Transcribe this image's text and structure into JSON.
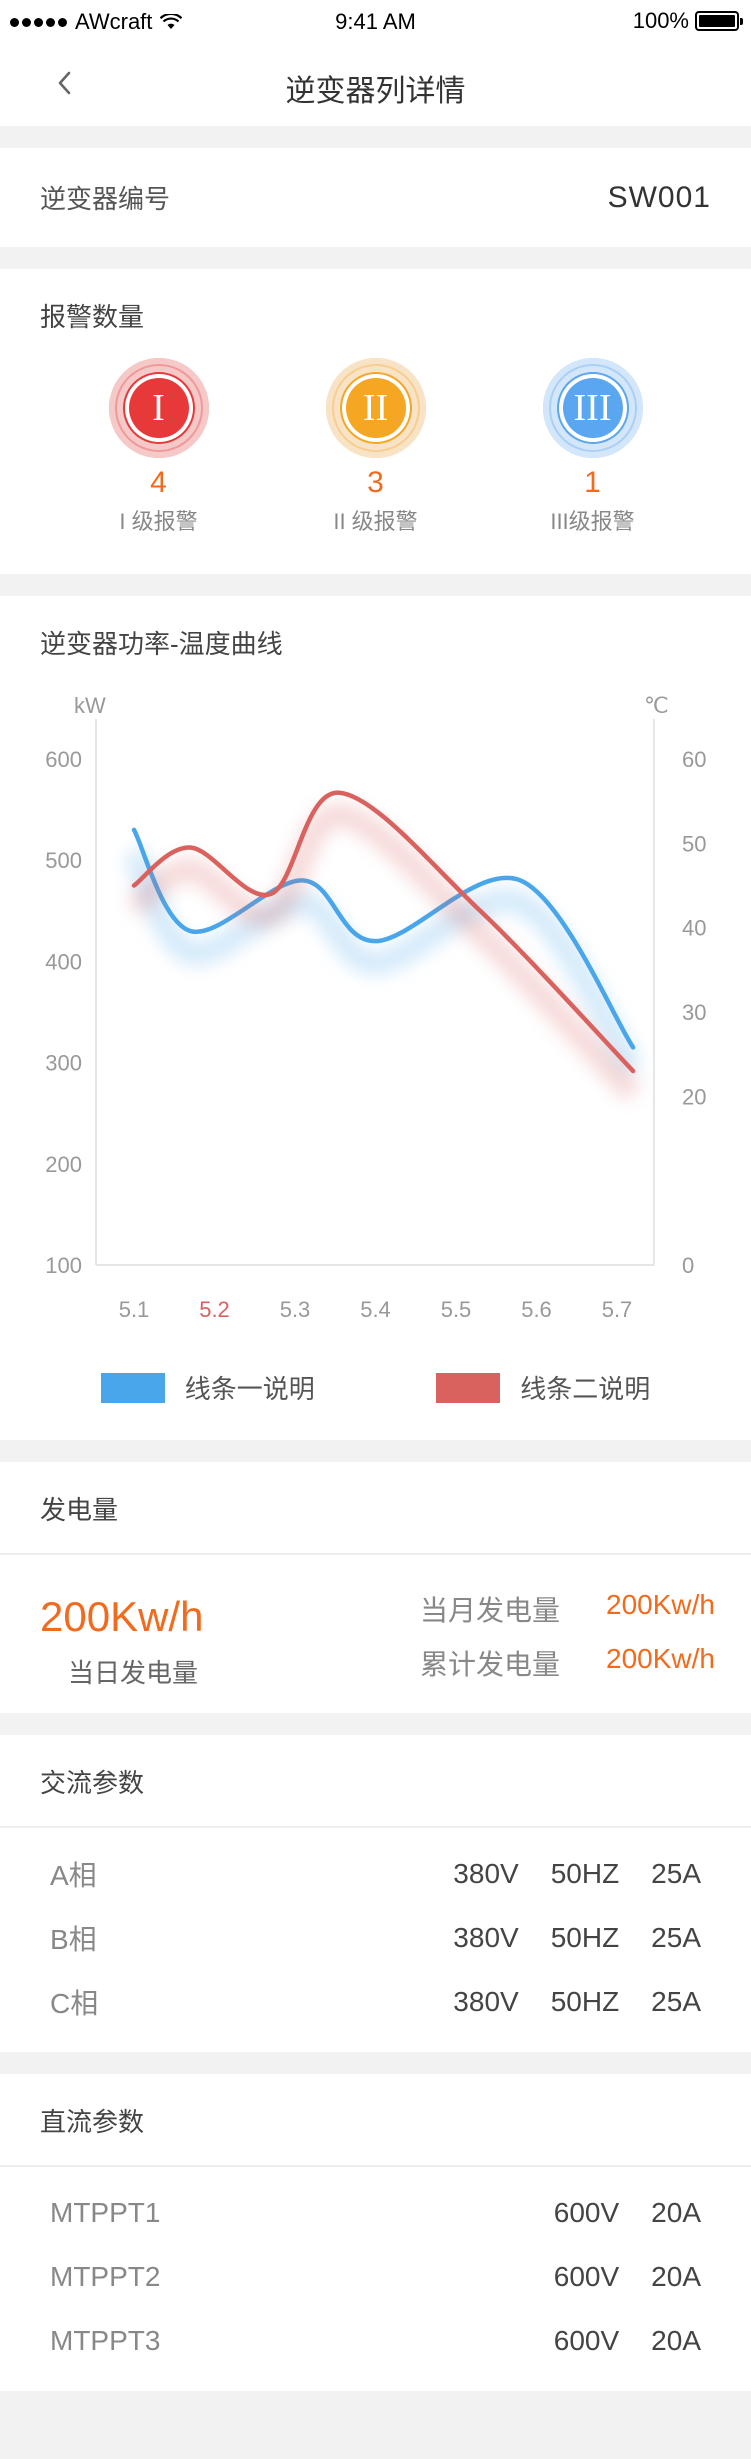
{
  "status_bar": {
    "carrier": "AWcraft",
    "time": "9:41 AM",
    "battery": "100%"
  },
  "nav": {
    "title": "逆变器列详情"
  },
  "inverter": {
    "label": "逆变器编号",
    "id": "SW001"
  },
  "alarms": {
    "title": "报警数量",
    "items": [
      {
        "numeral": "I",
        "count": "4",
        "label": "I 级报警",
        "color": "#e8393a",
        "halo": "#f6c9c9"
      },
      {
        "numeral": "II",
        "count": "3",
        "label": "II 级报警",
        "color": "#f5a623",
        "halo": "#f9e3c6"
      },
      {
        "numeral": "III",
        "count": "1",
        "label": "III级报警",
        "color": "#5aa6f0",
        "halo": "#d3e6fa"
      }
    ]
  },
  "chart": {
    "title": "逆变器功率-温度曲线",
    "legend": [
      {
        "name": "线条一说明",
        "color": "#4aa6ea"
      },
      {
        "name": "线条二说明",
        "color": "#d9625f"
      }
    ]
  },
  "chart_data": {
    "type": "line",
    "categories": [
      "5.1",
      "5.2",
      "5.3",
      "5.4",
      "5.5",
      "5.6",
      "5.7"
    ],
    "highlight_category": "5.2",
    "ylabel": "kW",
    "y2label": "℃",
    "ylim": [
      100,
      600
    ],
    "y_ticks": [
      600,
      500,
      400,
      300,
      200,
      100
    ],
    "y2lim": [
      0,
      60
    ],
    "y2_ticks": [
      60,
      50,
      40,
      30,
      20,
      0
    ],
    "series": [
      {
        "name": "线条一说明",
        "axis": "left",
        "color": "#4aa6ea",
        "points": [
          [
            0.0,
            530
          ],
          [
            0.7,
            430
          ],
          [
            2.1,
            480
          ],
          [
            3.0,
            420
          ],
          [
            4.8,
            480
          ],
          [
            6.2,
            315
          ]
        ]
      },
      {
        "name": "线条二说明",
        "axis": "right",
        "color": "#d9625f",
        "points": [
          [
            0.0,
            45
          ],
          [
            0.7,
            49.5
          ],
          [
            1.7,
            44
          ],
          [
            2.55,
            56
          ],
          [
            4.3,
            42
          ],
          [
            6.2,
            23
          ]
        ]
      }
    ]
  },
  "generation": {
    "title": "发电量",
    "today_value": "200Kw/h",
    "today_label": "当日发电量",
    "month_label": "当月发电量",
    "month_value": "200Kw/h",
    "total_label": "累计发电量",
    "total_value": "200Kw/h"
  },
  "ac": {
    "title": "交流参数",
    "rows": [
      {
        "name": "A相",
        "v": "380V",
        "f": "50HZ",
        "a": "25A"
      },
      {
        "name": "B相",
        "v": "380V",
        "f": "50HZ",
        "a": "25A"
      },
      {
        "name": "C相",
        "v": "380V",
        "f": "50HZ",
        "a": "25A"
      }
    ]
  },
  "dc": {
    "title": "直流参数",
    "rows": [
      {
        "name": "MTPPT1",
        "v": "600V",
        "a": "20A"
      },
      {
        "name": "MTPPT2",
        "v": "600V",
        "a": "20A"
      },
      {
        "name": "MTPPT3",
        "v": "600V",
        "a": "20A"
      }
    ]
  }
}
